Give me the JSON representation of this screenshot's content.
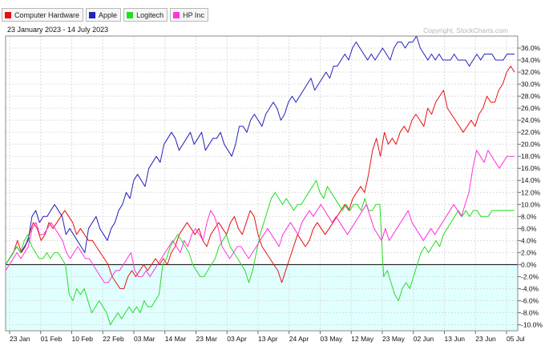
{
  "legend": [
    {
      "label": "Computer Hardware",
      "color": "#e81010"
    },
    {
      "label": "Apple",
      "color": "#2222bb"
    },
    {
      "label": "Logitech",
      "color": "#22dd22"
    },
    {
      "label": "HP Inc",
      "color": "#ff33dd"
    }
  ],
  "date_range": "23 January 2023 - 14 July 2023",
  "copyright": "Copyright, StockCharts.com",
  "chart_data": {
    "type": "line",
    "x_tick_labels": [
      "23 Jan",
      "01 Feb",
      "10 Feb",
      "22 Feb",
      "03 Mar",
      "14 Mar",
      "23 Mar",
      "03 Apr",
      "13 Apr",
      "24 Apr",
      "03 May",
      "12 May",
      "23 May",
      "02 Jun",
      "13 Jun",
      "23 Jun",
      "05 Jul"
    ],
    "y_tick_labels": [
      "36.0%",
      "34.0%",
      "32.0%",
      "30.0%",
      "28.0%",
      "26.0%",
      "24.0%",
      "22.0%",
      "20.0%",
      "18.0%",
      "16.0%",
      "14.0%",
      "12.0%",
      "10.0%",
      "8.0%",
      "6.0%",
      "4.0%",
      "2.0%",
      "0.0%",
      "-2.0%",
      "-4.0%",
      "-6.0%",
      "-8.0%",
      "-10.0%"
    ],
    "ylim": [
      -11,
      38
    ],
    "colors": {
      "background_above": "#ffffff",
      "background_below": "#e0ffff",
      "zero_line": "#000000"
    },
    "series": [
      {
        "name": "Computer Hardware",
        "color": "#e81010",
        "values": [
          0,
          1,
          2,
          4,
          2,
          3,
          5,
          7,
          6,
          4,
          5,
          7,
          6,
          7,
          8,
          9,
          8,
          7,
          5,
          6,
          5,
          4,
          4,
          3,
          2,
          1,
          0,
          -2,
          -3,
          -4,
          -4,
          -2,
          -1,
          -2,
          -1,
          0,
          -1,
          0,
          1,
          0,
          1,
          0,
          2,
          3,
          5,
          6,
          7,
          6,
          5,
          6,
          4,
          3,
          5,
          6,
          7,
          6,
          5,
          7,
          8,
          6,
          5,
          7,
          9,
          8,
          5,
          3,
          2,
          1,
          0,
          -1,
          -3,
          -1,
          1,
          3,
          5,
          4,
          3,
          4,
          6,
          7,
          6,
          5,
          6,
          7,
          8,
          9,
          10,
          9,
          11,
          12,
          13,
          12,
          15,
          19,
          21,
          18,
          22,
          20,
          21,
          20,
          22,
          23,
          22,
          24,
          25,
          24,
          23,
          26,
          25,
          27,
          28,
          29,
          26,
          25,
          24,
          23,
          22,
          23,
          24,
          23,
          25,
          26,
          28,
          27,
          27,
          29,
          30,
          32,
          33,
          32
        ]
      },
      {
        "name": "Apple",
        "color": "#2222bb",
        "values": [
          0,
          1,
          2,
          3,
          2,
          3,
          4,
          8,
          9,
          7,
          8,
          8,
          9,
          10,
          9,
          8,
          5,
          6,
          5,
          4,
          3,
          2,
          6,
          7,
          8,
          6,
          5,
          4,
          6,
          7,
          9,
          10,
          12,
          11,
          14,
          15,
          14,
          13,
          16,
          17,
          18,
          17,
          20,
          21,
          22,
          21,
          19,
          20,
          21,
          22,
          20,
          21,
          22,
          19,
          20,
          21,
          21,
          22,
          20,
          19,
          18,
          20,
          23,
          23,
          22,
          24,
          25,
          24,
          23,
          25,
          26,
          27,
          26,
          24,
          25,
          27,
          28,
          27,
          28,
          29,
          30,
          31,
          29,
          30,
          31,
          32,
          31,
          33,
          33,
          34,
          35,
          34,
          36,
          37,
          36,
          35,
          34,
          35,
          34,
          35,
          36,
          35,
          34,
          36,
          37,
          37,
          36,
          37,
          37,
          38,
          36,
          35,
          34,
          35,
          34,
          35,
          34,
          34,
          34,
          35,
          34,
          34,
          34,
          33,
          34,
          35,
          34,
          35,
          35,
          35,
          34,
          34,
          34,
          35,
          35,
          35
        ]
      },
      {
        "name": "Logitech",
        "color": "#22dd22",
        "values": [
          0,
          1,
          2,
          3,
          2,
          4,
          5,
          3,
          2,
          1,
          1,
          2,
          1,
          2,
          2,
          1,
          0,
          -5,
          -6,
          -4,
          -5,
          -4,
          -6,
          -8,
          -7,
          -6,
          -7,
          -8,
          -10,
          -9,
          -8,
          -9,
          -8,
          -7,
          -8,
          -7,
          -8,
          -6,
          -7,
          -7,
          -6,
          -5,
          0,
          1,
          3,
          4,
          5,
          4,
          3,
          2,
          0,
          -1,
          -2,
          -2,
          -1,
          0,
          1,
          3,
          4,
          5,
          3,
          2,
          1,
          0,
          -1,
          -3,
          -1,
          2,
          5,
          7,
          9,
          11,
          12,
          11,
          10,
          11,
          10,
          9,
          10,
          10,
          11,
          12,
          13,
          14,
          12,
          11,
          13,
          12,
          11,
          10,
          9,
          10,
          9,
          10,
          10,
          9,
          11,
          9,
          9,
          10,
          10,
          -2,
          -1,
          -3,
          -5,
          -6,
          -4,
          -3,
          -4,
          -2,
          0,
          2,
          3,
          2,
          3,
          4,
          3,
          5,
          6,
          7,
          8,
          9,
          8,
          9,
          8,
          9,
          9,
          8,
          8,
          8,
          9,
          9,
          9,
          9,
          9,
          9,
          9
        ]
      },
      {
        "name": "HP Inc",
        "color": "#ff33dd",
        "values": [
          -1,
          0,
          1,
          2,
          1,
          2,
          3,
          6,
          7,
          5,
          5,
          6,
          7,
          6,
          5,
          4,
          2,
          1,
          2,
          3,
          2,
          1,
          1,
          0,
          -1,
          -2,
          -3,
          -3,
          -2,
          -1,
          -1,
          0,
          1,
          2,
          -1,
          -2,
          -2,
          -1,
          -2,
          -1,
          0,
          1,
          2,
          3,
          4,
          3,
          2,
          4,
          3,
          5,
          6,
          5,
          4,
          7,
          9,
          8,
          6,
          3,
          2,
          1,
          2,
          3,
          3,
          2,
          1,
          2,
          3,
          4,
          5,
          6,
          5,
          4,
          3,
          5,
          6,
          7,
          6,
          5,
          7,
          8,
          9,
          8,
          9,
          10,
          9,
          8,
          7,
          8,
          7,
          6,
          5,
          6,
          7,
          8,
          9,
          10,
          8,
          6,
          5,
          4,
          6,
          4,
          5,
          6,
          7,
          8,
          9,
          7,
          6,
          5,
          4,
          5,
          6,
          5,
          6,
          7,
          8,
          9,
          10,
          9,
          8,
          10,
          12,
          16,
          19,
          18,
          17,
          19,
          18,
          17,
          16,
          17,
          18,
          18,
          18
        ]
      }
    ]
  }
}
